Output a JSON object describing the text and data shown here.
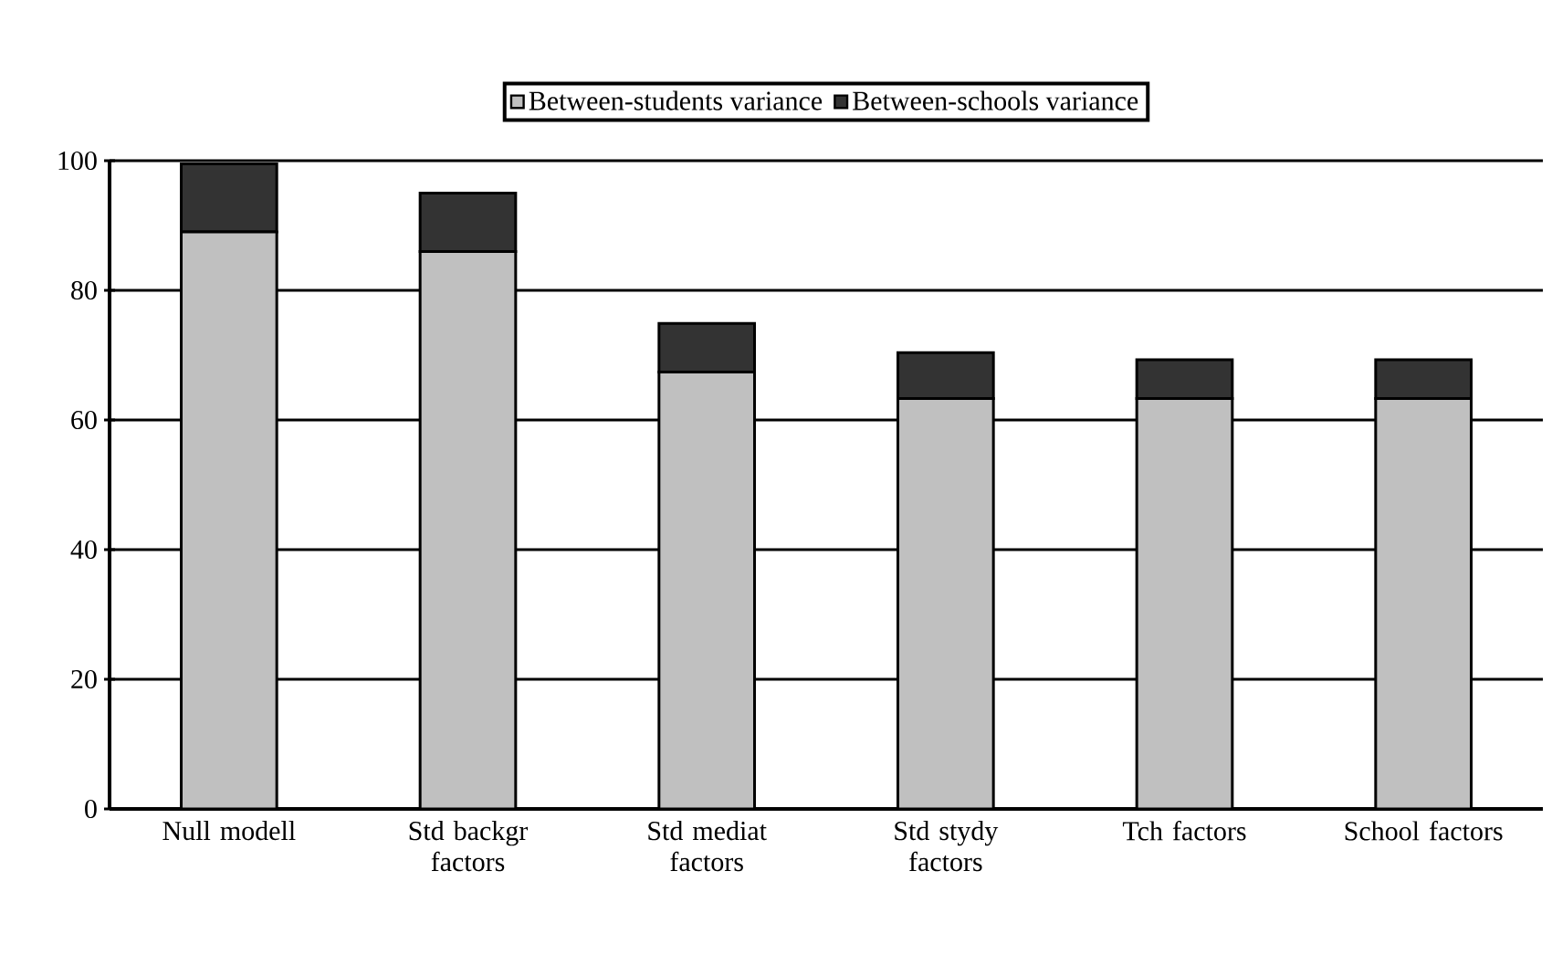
{
  "chart_data": {
    "type": "bar",
    "stacked": true,
    "categories": [
      "Null modell",
      "Std backgr factors",
      "Std mediat factors",
      "Std stydy factors",
      "Tch factors",
      "School factors"
    ],
    "series": [
      {
        "name": "Between-students variance",
        "color": "#c0c0c0",
        "values": [
          89,
          86,
          67.4,
          63.3,
          63.3,
          63.3
        ]
      },
      {
        "name": "Between-schools variance",
        "color": "#333333",
        "values": [
          10.5,
          9,
          7.5,
          7.1,
          6,
          6
        ]
      }
    ],
    "ylim": [
      0,
      100
    ],
    "yticks": [
      0,
      20,
      40,
      60,
      80,
      100
    ],
    "grid": "y",
    "legend": "top"
  }
}
